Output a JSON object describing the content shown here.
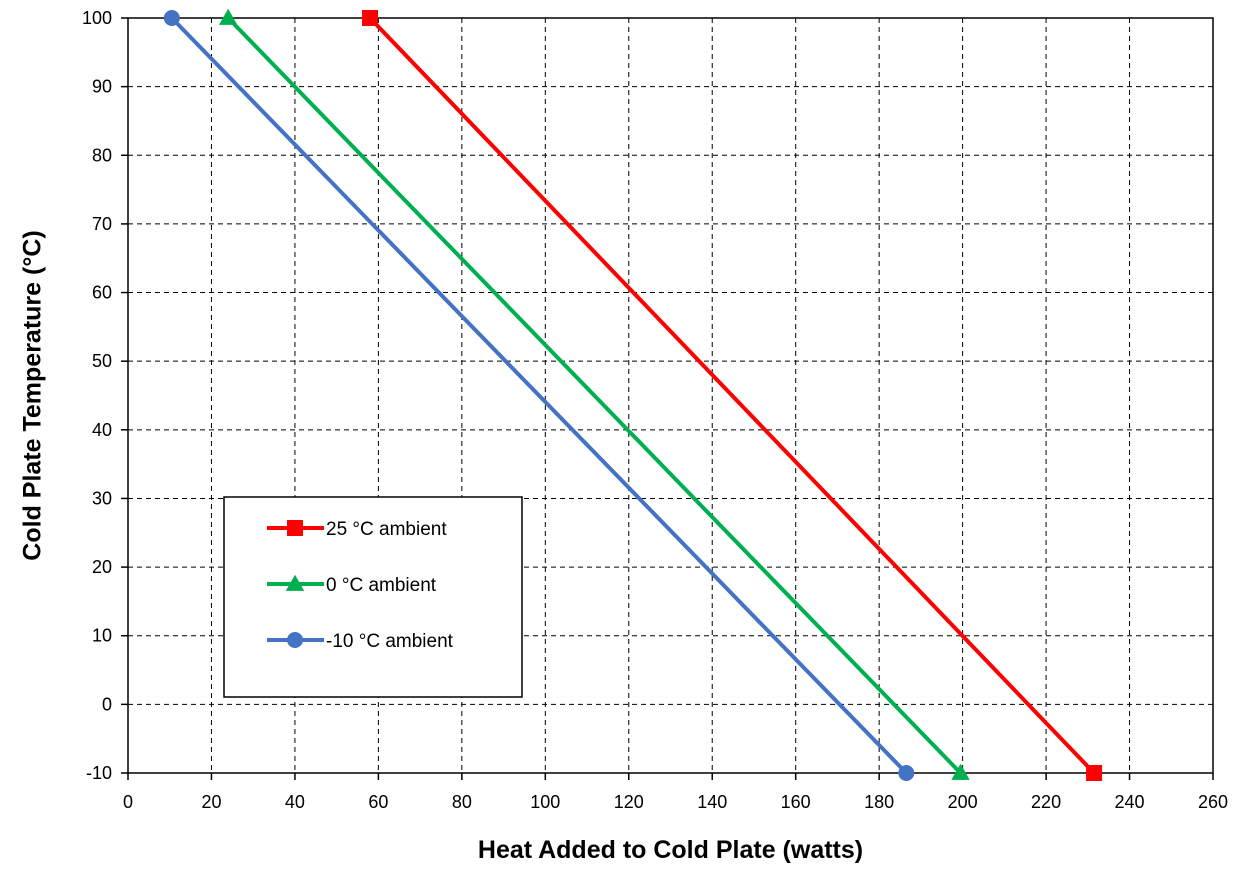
{
  "chart_data": {
    "type": "line",
    "title": "",
    "xlabel": "Heat Added to Cold Plate (watts)",
    "ylabel": "Cold Plate Temperature (°C)",
    "xlim": [
      0,
      260
    ],
    "ylim": [
      -10,
      100
    ],
    "xticks": [
      0,
      20,
      40,
      60,
      80,
      100,
      120,
      140,
      160,
      180,
      200,
      220,
      240,
      260
    ],
    "yticks": [
      -10,
      0,
      10,
      20,
      30,
      40,
      50,
      60,
      70,
      80,
      90,
      100
    ],
    "grid": true,
    "grid_style": "dashed",
    "legend_position": "lower-left",
    "series": [
      {
        "name": "25 °C ambient",
        "color": "#ff0000",
        "marker": "square",
        "x": [
          58,
          231.5
        ],
        "y": [
          100,
          -10
        ]
      },
      {
        "name": "0 °C ambient",
        "color": "#00b050",
        "marker": "triangle",
        "x": [
          24,
          199.5
        ],
        "y": [
          100,
          -10
        ]
      },
      {
        "name": "-10 °C ambient",
        "color": "#4472c4",
        "marker": "circle",
        "x": [
          10.5,
          186.5
        ],
        "y": [
          100,
          -10
        ]
      }
    ]
  }
}
